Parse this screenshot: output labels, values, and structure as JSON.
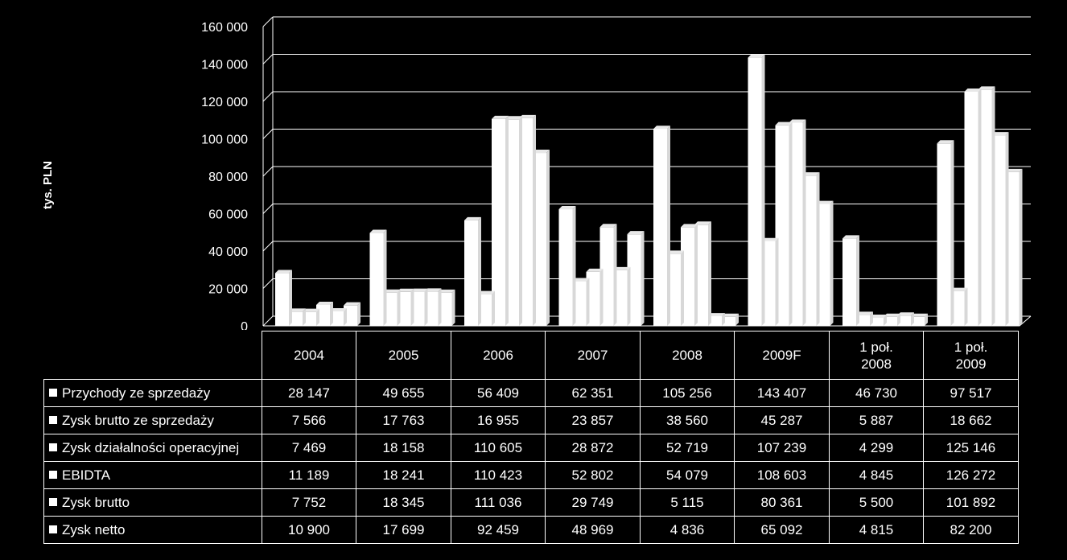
{
  "chart_data": {
    "type": "bar",
    "ylabel": "tys. PLN",
    "ylim": [
      0,
      160000
    ],
    "y_ticks": [
      "0",
      "20 000",
      "40 000",
      "60 000",
      "80 000",
      "100 000",
      "120 000",
      "140 000",
      "160 000"
    ],
    "grid": true,
    "colors": {
      "bars": "#ffffff",
      "background": "#000000",
      "grid": "#ffffff"
    },
    "categories": [
      "2004",
      "2005",
      "2006",
      "2007",
      "2008",
      "2009F",
      "1 poł.\n2008",
      "1 poł.\n2009"
    ],
    "series": [
      {
        "name": "Przychody ze sprzedaży",
        "values": [
          28147,
          49655,
          56409,
          62351,
          105256,
          143407,
          46730,
          97517
        ],
        "labels": [
          "28 147",
          "49 655",
          "56 409",
          "62 351",
          "105 256",
          "143 407",
          "46 730",
          "97 517"
        ]
      },
      {
        "name": "Zysk brutto ze sprzedaży",
        "values": [
          7566,
          17763,
          16955,
          23857,
          38560,
          45287,
          5887,
          18662
        ],
        "labels": [
          "7 566",
          "17 763",
          "16 955",
          "23 857",
          "38 560",
          "45 287",
          "5 887",
          "18 662"
        ]
      },
      {
        "name": "Zysk działalności operacyjnej",
        "values": [
          7469,
          18158,
          110605,
          28872,
          52719,
          107239,
          4299,
          125146
        ],
        "labels": [
          "7 469",
          "18 158",
          "110 605",
          "28 872",
          "52 719",
          "107 239",
          "4 299",
          "125 146"
        ]
      },
      {
        "name": "EBIDTA",
        "values": [
          11189,
          18241,
          110423,
          52802,
          54079,
          108603,
          4845,
          126272
        ],
        "labels": [
          "11 189",
          "18 241",
          "110 423",
          "52 802",
          "54 079",
          "108 603",
          "4 845",
          "126 272"
        ]
      },
      {
        "name": "Zysk brutto",
        "values": [
          7752,
          18345,
          111036,
          29749,
          5115,
          80361,
          5500,
          101892
        ],
        "labels": [
          "7 752",
          "18 345",
          "111 036",
          "29 749",
          "5 115",
          "80 361",
          "5 500",
          "101 892"
        ]
      },
      {
        "name": "Zysk netto",
        "values": [
          10900,
          17699,
          92459,
          48969,
          4836,
          65092,
          4815,
          82200
        ],
        "labels": [
          "10 900",
          "17 699",
          "92 459",
          "48 969",
          "4 836",
          "65 092",
          "4 815",
          "82 200"
        ]
      }
    ]
  }
}
